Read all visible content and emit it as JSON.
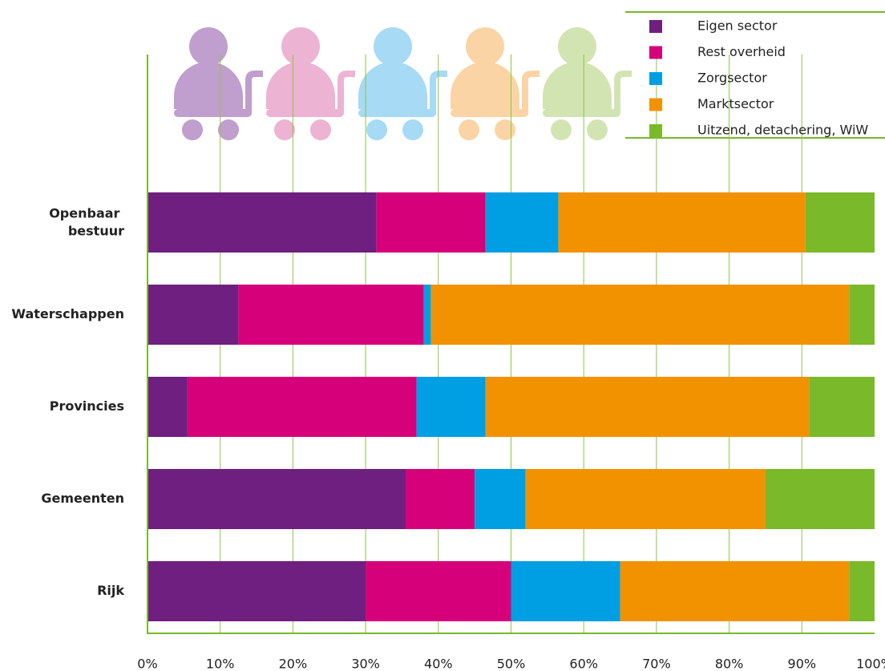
{
  "chart_data": {
    "type": "stacked-barh",
    "categories": [
      "Openbaar bestuur",
      "Waterschappen",
      "Provincies",
      "Gemeenten",
      "Rijk"
    ],
    "series": [
      {
        "name": "Eigen sector",
        "color": "#6f1f7f",
        "values": [
          31.5,
          12.5,
          5.5,
          35.5,
          30
        ]
      },
      {
        "name": "Rest overheid",
        "color": "#d6007b",
        "values": [
          15,
          25.5,
          31.5,
          9.5,
          20
        ]
      },
      {
        "name": "Zorgsector",
        "color": "#009fe3",
        "values": [
          10,
          1,
          9.5,
          7,
          15
        ]
      },
      {
        "name": "Marktsector",
        "color": "#f39200",
        "values": [
          34,
          57.5,
          44.5,
          33,
          31.5
        ]
      },
      {
        "name": "Uitzend, detachering, WiW",
        "color": "#7ab929",
        "values": [
          9.5,
          3.5,
          9,
          15,
          3.5
        ]
      }
    ],
    "xlim": [
      0,
      100
    ],
    "xticks": [
      {
        "value": 0,
        "label": "0%"
      },
      {
        "value": 10,
        "label": "10%"
      },
      {
        "value": 20,
        "label": "20%"
      },
      {
        "value": 30,
        "label": "30%"
      },
      {
        "value": 40,
        "label": "40%"
      },
      {
        "value": 50,
        "label": "50%"
      },
      {
        "value": 60,
        "label": "60%"
      },
      {
        "value": 70,
        "label": "70%"
      },
      {
        "value": 80,
        "label": "80%"
      },
      {
        "value": 90,
        "label": "90%"
      },
      {
        "value": 100,
        "label": "100%"
      }
    ],
    "grid": true,
    "legend": "top-right"
  }
}
